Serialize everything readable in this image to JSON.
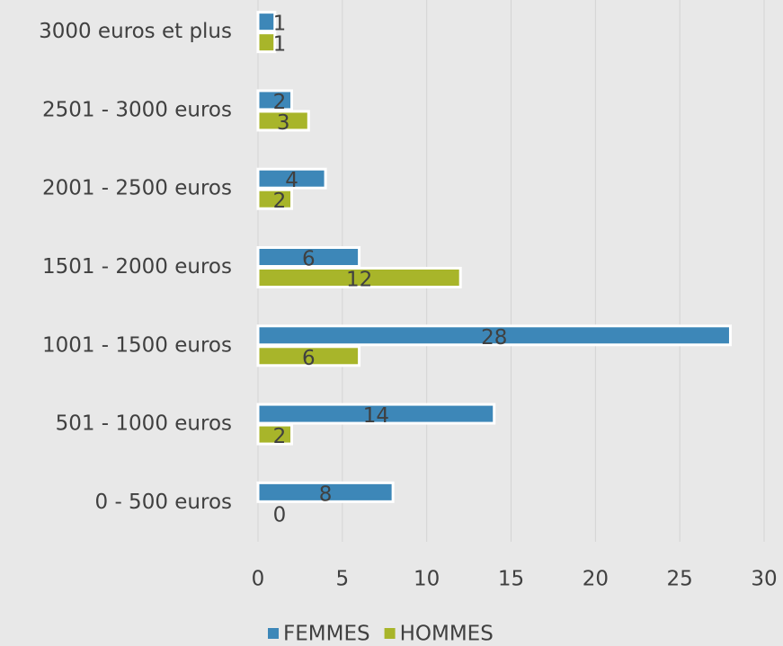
{
  "chart_data": {
    "type": "hbar",
    "categories": [
      "3000 euros et plus",
      "2501 - 3000 euros",
      "2001 - 2500 euros",
      "1501 - 2000 euros",
      "1001 - 1500 euros",
      "501 - 1000 euros",
      "0 - 500 euros"
    ],
    "series": [
      {
        "name": "FEMMES",
        "color": "#3d87b8",
        "values": [
          1,
          2,
          4,
          6,
          28,
          14,
          8
        ]
      },
      {
        "name": "HOMMES",
        "color": "#a8b52a",
        "values": [
          1,
          3,
          2,
          12,
          6,
          2,
          0
        ]
      }
    ],
    "xlim": [
      0,
      30
    ],
    "xticks": [
      0,
      5,
      10,
      15,
      20,
      25,
      30
    ],
    "grid": true,
    "legend": "bottom"
  }
}
